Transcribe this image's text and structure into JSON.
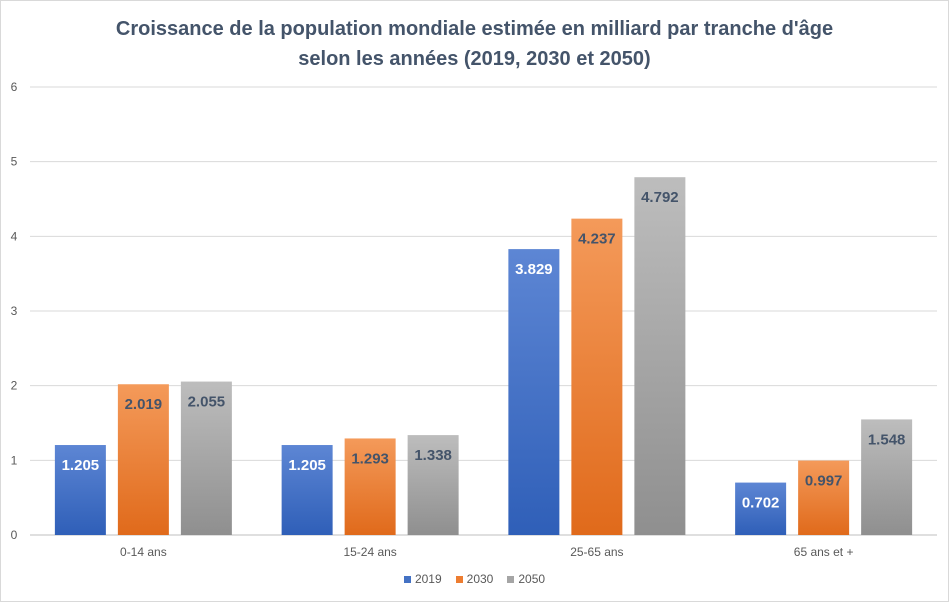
{
  "chart_data": {
    "type": "bar",
    "title_lines": [
      "Croissance de la population mondiale estimée en milliard par tranche d'âge",
      "selon les années (2019, 2030 et 2050)"
    ],
    "categories": [
      "0-14 ans",
      "15-24 ans",
      "25-65 ans",
      "65 ans et +"
    ],
    "series": [
      {
        "name": "2019",
        "values": [
          1.205,
          1.205,
          3.829,
          0.702
        ],
        "labels": [
          "1.205",
          "1.205",
          "3.829",
          "0.702"
        ],
        "color": "#4472c4",
        "label_color": "#ffffff"
      },
      {
        "name": "2030",
        "values": [
          2.019,
          1.293,
          4.237,
          0.997
        ],
        "labels": [
          "2.019",
          "1.293",
          "4.237",
          "0.997"
        ],
        "color": "#ed7d31",
        "label_color": "#44546a"
      },
      {
        "name": "2050",
        "values": [
          2.055,
          1.338,
          4.792,
          1.548
        ],
        "labels": [
          "2.055",
          "1.338",
          "4.792",
          "1.548"
        ],
        "color": "#a5a5a5",
        "label_color": "#44546a"
      }
    ],
    "y_ticks": [
      "0",
      "1",
      "2",
      "3",
      "4",
      "5",
      "6"
    ],
    "ylim": [
      0,
      6
    ],
    "grid": true,
    "legend_position": "bottom"
  }
}
